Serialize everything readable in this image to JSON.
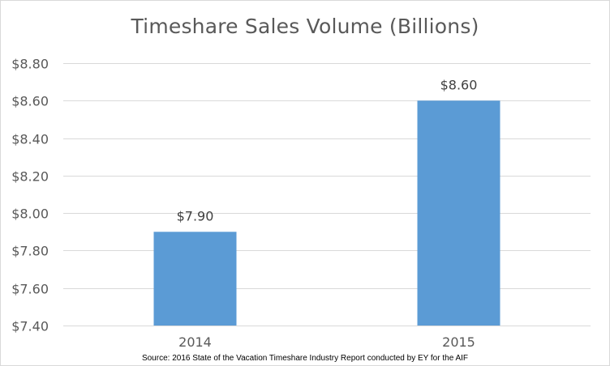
{
  "chart_data": {
    "type": "bar",
    "title": "Timeshare Sales Volume (Billions)",
    "categories": [
      "2014",
      "2015"
    ],
    "values": [
      7.9,
      8.6
    ],
    "data_labels": [
      "$7.90",
      "$8.60"
    ],
    "y_ticks": [
      "$7.40",
      "$7.60",
      "$7.80",
      "$8.00",
      "$8.20",
      "$8.40",
      "$8.60",
      "$8.80"
    ],
    "ylim": [
      7.4,
      8.8
    ],
    "ytick_step": 0.2,
    "xlabel": "",
    "ylabel": "",
    "grid": true,
    "legend": "none",
    "bar_color": "#5b9bd5",
    "gridline_color": "#d9d9d9"
  },
  "source_note": "Source: 2016 State of the Vacation Timeshare Industry Report conducted by EY for the AIF"
}
